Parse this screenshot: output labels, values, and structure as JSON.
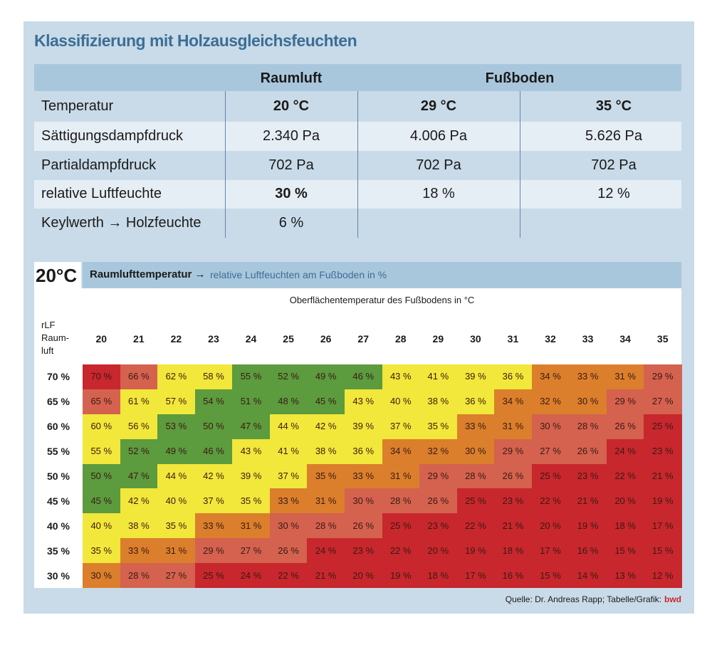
{
  "title": "Klassifizierung mit Holzausgleichsfeuchten",
  "top_table": {
    "header": [
      "Raumluft",
      "Fußboden"
    ],
    "rows": [
      [
        "Temperatur",
        "20 °C",
        "29 °C",
        "35 °C"
      ],
      [
        "Sättigungsdampfdruck",
        "2.340 Pa",
        "4.006 Pa",
        "5.626 Pa"
      ],
      [
        "Partialdampfdruck",
        "702 Pa",
        "702 Pa",
        "702 Pa"
      ],
      [
        "relative Luftfeuchte",
        "30 %",
        "18 %",
        "12 %"
      ],
      [
        "Keylwerth → Holzfeuchte",
        "6 %"
      ]
    ]
  },
  "grid": {
    "badge": "20°C",
    "heading": "Raumlufttemperatur →",
    "subheading": "relative Luftfeuchten am Fußboden in %",
    "axis_label": "Oberflächentemperatur des Fußbodens in °C",
    "corner_label": [
      "rLF",
      "Raum-",
      "luft"
    ],
    "columns": [
      "20",
      "21",
      "22",
      "23",
      "24",
      "25",
      "26",
      "27",
      "28",
      "29",
      "30",
      "31",
      "32",
      "33",
      "34",
      "35"
    ],
    "colors": {
      "R": "#c8272d",
      "S": "#d4624f",
      "O": "#db7f2c",
      "Y": "#f2e73b",
      "G": "#5c9b3e"
    },
    "rows": [
      {
        "label": "70 %",
        "colors": "RSYYGGGGYYYYOOOS",
        "cells": [
          "70 %",
          "66 %",
          "62 %",
          "58 %",
          "55 %",
          "52 %",
          "49 %",
          "46 %",
          "43 %",
          "41 %",
          "39 %",
          "36 %",
          "34 %",
          "33 %",
          "31 %",
          "29 %"
        ]
      },
      {
        "label": "65 %",
        "colors": "SYYGGGGYYYYOOOSS",
        "cells": [
          "65 %",
          "61 %",
          "57 %",
          "54 %",
          "51 %",
          "48 %",
          "45 %",
          "43 %",
          "40 %",
          "38 %",
          "36 %",
          "34 %",
          "32 %",
          "30 %",
          "29 %",
          "27 %"
        ]
      },
      {
        "label": "60 %",
        "colors": "YYGGGYYYYYOOSSSR",
        "cells": [
          "60 %",
          "56 %",
          "53 %",
          "50 %",
          "47 %",
          "44 %",
          "42 %",
          "39 %",
          "37 %",
          "35 %",
          "33 %",
          "31 %",
          "30 %",
          "28 %",
          "26 %",
          "25 %"
        ]
      },
      {
        "label": "55 %",
        "colors": "YGGGYYYYOOOSSSRR",
        "cells": [
          "55 %",
          "52 %",
          "49 %",
          "46 %",
          "43 %",
          "41 %",
          "38 %",
          "36 %",
          "34 %",
          "32 %",
          "30 %",
          "29 %",
          "27 %",
          "26 %",
          "24 %",
          "23 %"
        ]
      },
      {
        "label": "50 %",
        "colors": "GGYYYYOOOSSSRRRR",
        "cells": [
          "50 %",
          "47 %",
          "44 %",
          "42 %",
          "39 %",
          "37 %",
          "35 %",
          "33 %",
          "31 %",
          "29 %",
          "28 %",
          "26 %",
          "25 %",
          "23 %",
          "22 %",
          "21 %"
        ]
      },
      {
        "label": "45 %",
        "colors": "GYYYYOOSSSRRRRRR",
        "cells": [
          "45 %",
          "42 %",
          "40 %",
          "37 %",
          "35 %",
          "33 %",
          "31 %",
          "30 %",
          "28 %",
          "26 %",
          "25 %",
          "23 %",
          "22 %",
          "21 %",
          "20 %",
          "19 %"
        ]
      },
      {
        "label": "40 %",
        "colors": "YYYOOSSSRRRRRRRR",
        "cells": [
          "40 %",
          "38 %",
          "35 %",
          "33 %",
          "31 %",
          "30 %",
          "28 %",
          "26 %",
          "25 %",
          "23 %",
          "22 %",
          "21 %",
          "20 %",
          "19 %",
          "18 %",
          "17 %"
        ]
      },
      {
        "label": "35 %",
        "colors": "YOOSSSRRRRRRRRRR",
        "cells": [
          "35 %",
          "33 %",
          "31 %",
          "29 %",
          "27 %",
          "26 %",
          "24 %",
          "23 %",
          "22 %",
          "20 %",
          "19 %",
          "18 %",
          "17 %",
          "16 %",
          "15 %",
          "15 %"
        ]
      },
      {
        "label": "30 %",
        "colors": "OSSRRRRRRRRRRRRR",
        "cells": [
          "30 %",
          "28 %",
          "27 %",
          "25 %",
          "24 %",
          "22 %",
          "21 %",
          "20 %",
          "19 %",
          "18 %",
          "17 %",
          "16 %",
          "15 %",
          "14 %",
          "13 %",
          "12 %"
        ]
      }
    ]
  },
  "source": {
    "text": "Quelle: Dr. Andreas Rapp; Tabelle/Grafik:",
    "brand": "bwd"
  }
}
